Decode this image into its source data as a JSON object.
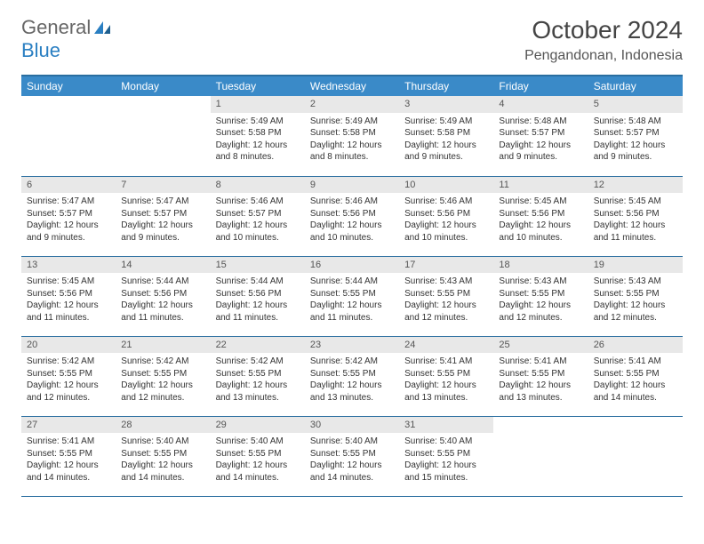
{
  "brand": {
    "part1": "General",
    "part2": "Blue"
  },
  "title": "October 2024",
  "location": "Pengandonan, Indonesia",
  "colors": {
    "header_bg": "#3a8ac8",
    "header_border": "#2a6ea0",
    "daynum_bg": "#e8e8e8",
    "text": "#333333",
    "brand_gray": "#666666",
    "brand_blue": "#2a7fc2"
  },
  "weekdays": [
    "Sunday",
    "Monday",
    "Tuesday",
    "Wednesday",
    "Thursday",
    "Friday",
    "Saturday"
  ],
  "weeks": [
    [
      null,
      null,
      {
        "n": "1",
        "sr": "Sunrise: 5:49 AM",
        "ss": "Sunset: 5:58 PM",
        "dl": "Daylight: 12 hours and 8 minutes."
      },
      {
        "n": "2",
        "sr": "Sunrise: 5:49 AM",
        "ss": "Sunset: 5:58 PM",
        "dl": "Daylight: 12 hours and 8 minutes."
      },
      {
        "n": "3",
        "sr": "Sunrise: 5:49 AM",
        "ss": "Sunset: 5:58 PM",
        "dl": "Daylight: 12 hours and 9 minutes."
      },
      {
        "n": "4",
        "sr": "Sunrise: 5:48 AM",
        "ss": "Sunset: 5:57 PM",
        "dl": "Daylight: 12 hours and 9 minutes."
      },
      {
        "n": "5",
        "sr": "Sunrise: 5:48 AM",
        "ss": "Sunset: 5:57 PM",
        "dl": "Daylight: 12 hours and 9 minutes."
      }
    ],
    [
      {
        "n": "6",
        "sr": "Sunrise: 5:47 AM",
        "ss": "Sunset: 5:57 PM",
        "dl": "Daylight: 12 hours and 9 minutes."
      },
      {
        "n": "7",
        "sr": "Sunrise: 5:47 AM",
        "ss": "Sunset: 5:57 PM",
        "dl": "Daylight: 12 hours and 9 minutes."
      },
      {
        "n": "8",
        "sr": "Sunrise: 5:46 AM",
        "ss": "Sunset: 5:57 PM",
        "dl": "Daylight: 12 hours and 10 minutes."
      },
      {
        "n": "9",
        "sr": "Sunrise: 5:46 AM",
        "ss": "Sunset: 5:56 PM",
        "dl": "Daylight: 12 hours and 10 minutes."
      },
      {
        "n": "10",
        "sr": "Sunrise: 5:46 AM",
        "ss": "Sunset: 5:56 PM",
        "dl": "Daylight: 12 hours and 10 minutes."
      },
      {
        "n": "11",
        "sr": "Sunrise: 5:45 AM",
        "ss": "Sunset: 5:56 PM",
        "dl": "Daylight: 12 hours and 10 minutes."
      },
      {
        "n": "12",
        "sr": "Sunrise: 5:45 AM",
        "ss": "Sunset: 5:56 PM",
        "dl": "Daylight: 12 hours and 11 minutes."
      }
    ],
    [
      {
        "n": "13",
        "sr": "Sunrise: 5:45 AM",
        "ss": "Sunset: 5:56 PM",
        "dl": "Daylight: 12 hours and 11 minutes."
      },
      {
        "n": "14",
        "sr": "Sunrise: 5:44 AM",
        "ss": "Sunset: 5:56 PM",
        "dl": "Daylight: 12 hours and 11 minutes."
      },
      {
        "n": "15",
        "sr": "Sunrise: 5:44 AM",
        "ss": "Sunset: 5:56 PM",
        "dl": "Daylight: 12 hours and 11 minutes."
      },
      {
        "n": "16",
        "sr": "Sunrise: 5:44 AM",
        "ss": "Sunset: 5:55 PM",
        "dl": "Daylight: 12 hours and 11 minutes."
      },
      {
        "n": "17",
        "sr": "Sunrise: 5:43 AM",
        "ss": "Sunset: 5:55 PM",
        "dl": "Daylight: 12 hours and 12 minutes."
      },
      {
        "n": "18",
        "sr": "Sunrise: 5:43 AM",
        "ss": "Sunset: 5:55 PM",
        "dl": "Daylight: 12 hours and 12 minutes."
      },
      {
        "n": "19",
        "sr": "Sunrise: 5:43 AM",
        "ss": "Sunset: 5:55 PM",
        "dl": "Daylight: 12 hours and 12 minutes."
      }
    ],
    [
      {
        "n": "20",
        "sr": "Sunrise: 5:42 AM",
        "ss": "Sunset: 5:55 PM",
        "dl": "Daylight: 12 hours and 12 minutes."
      },
      {
        "n": "21",
        "sr": "Sunrise: 5:42 AM",
        "ss": "Sunset: 5:55 PM",
        "dl": "Daylight: 12 hours and 12 minutes."
      },
      {
        "n": "22",
        "sr": "Sunrise: 5:42 AM",
        "ss": "Sunset: 5:55 PM",
        "dl": "Daylight: 12 hours and 13 minutes."
      },
      {
        "n": "23",
        "sr": "Sunrise: 5:42 AM",
        "ss": "Sunset: 5:55 PM",
        "dl": "Daylight: 12 hours and 13 minutes."
      },
      {
        "n": "24",
        "sr": "Sunrise: 5:41 AM",
        "ss": "Sunset: 5:55 PM",
        "dl": "Daylight: 12 hours and 13 minutes."
      },
      {
        "n": "25",
        "sr": "Sunrise: 5:41 AM",
        "ss": "Sunset: 5:55 PM",
        "dl": "Daylight: 12 hours and 13 minutes."
      },
      {
        "n": "26",
        "sr": "Sunrise: 5:41 AM",
        "ss": "Sunset: 5:55 PM",
        "dl": "Daylight: 12 hours and 14 minutes."
      }
    ],
    [
      {
        "n": "27",
        "sr": "Sunrise: 5:41 AM",
        "ss": "Sunset: 5:55 PM",
        "dl": "Daylight: 12 hours and 14 minutes."
      },
      {
        "n": "28",
        "sr": "Sunrise: 5:40 AM",
        "ss": "Sunset: 5:55 PM",
        "dl": "Daylight: 12 hours and 14 minutes."
      },
      {
        "n": "29",
        "sr": "Sunrise: 5:40 AM",
        "ss": "Sunset: 5:55 PM",
        "dl": "Daylight: 12 hours and 14 minutes."
      },
      {
        "n": "30",
        "sr": "Sunrise: 5:40 AM",
        "ss": "Sunset: 5:55 PM",
        "dl": "Daylight: 12 hours and 14 minutes."
      },
      {
        "n": "31",
        "sr": "Sunrise: 5:40 AM",
        "ss": "Sunset: 5:55 PM",
        "dl": "Daylight: 12 hours and 15 minutes."
      },
      null,
      null
    ]
  ]
}
